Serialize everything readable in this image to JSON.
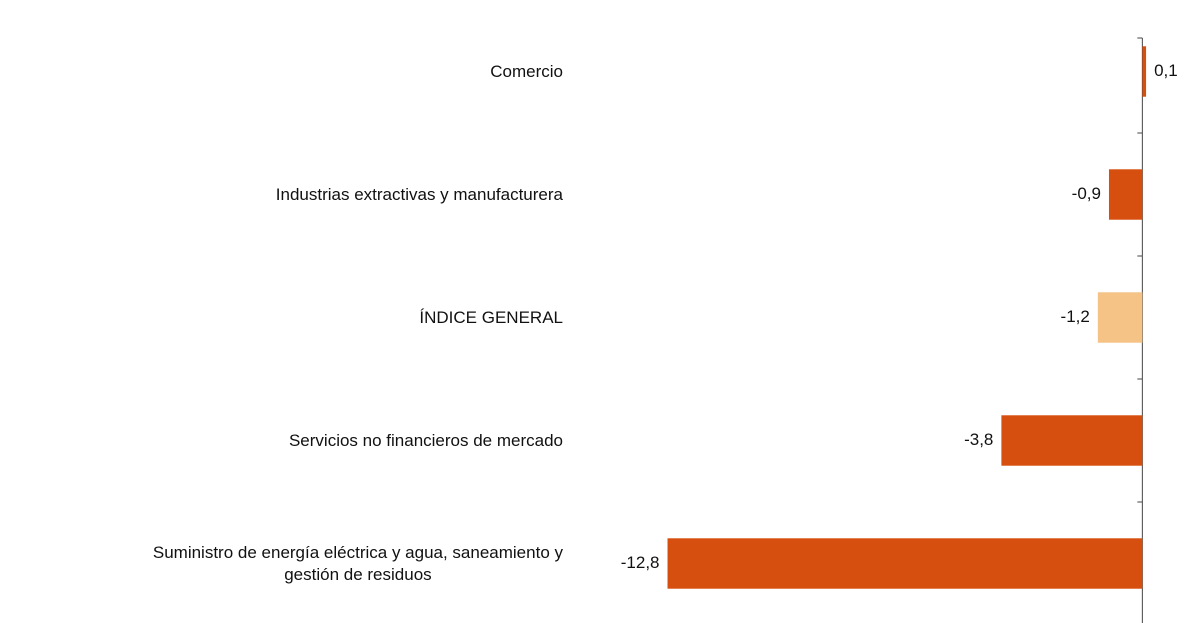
{
  "chart_data": {
    "type": "hbar",
    "categories": [
      "Comercio",
      "Industrias extractivas y manufacturera",
      "ÍNDICE GENERAL",
      "Servicios no financieros de mercado",
      "Suministro de energía eléctrica y agua, saneamiento y\ngestión de residuos"
    ],
    "values": [
      0.1,
      -0.9,
      -1.2,
      -3.8,
      -12.8
    ],
    "value_labels": [
      "0,1",
      "-0,9",
      "-1,2",
      "-3,8",
      "-12,8"
    ],
    "colors": [
      "#d64f0f",
      "#d64f0f",
      "#f4c385",
      "#d64f0f",
      "#d64f0f"
    ],
    "xlim": [
      -14,
      1.5
    ]
  }
}
